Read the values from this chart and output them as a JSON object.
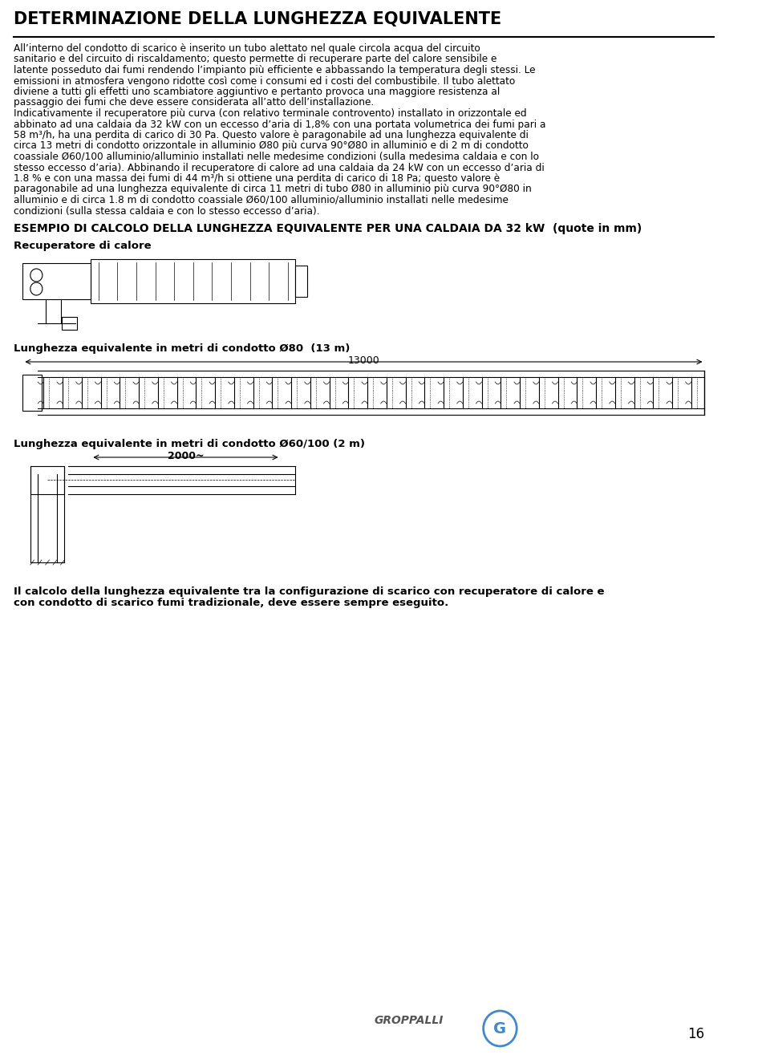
{
  "title": "DETERMINAZIONE DELLA LUNGHEZZA EQUIVALENTE",
  "paragraph1": "All’interno del condotto di scarico è inserito un tubo alettato nel quale circola acqua del circuito sanitario e del circuito di riscaldamento; questo permette di recuperare parte del calore sensibile e latente posseduto dai fumi rendendo l’impianto più efficiente e abbassando la temperatura degli stessi. Le emissioni in atmosfera vengono ridotte così come i consumi ed i costi del combustibile. Il tubo alettato diviene a tutti gli effetti uno scambiatore aggiuntivo e pertanto provoca una maggiore resistenza al passaggio dei fumi che deve essere considerata all’atto dell’installazione.",
  "paragraph2": "Indicativamente il recuperatore più curva (con relativo terminale controvento) installato in orizzontale ed abbinato ad una caldaia da 32 kW con un eccesso d’aria di 1,8% con una portata volumetrica dei fumi pari a 58 m³/h, ha una perdita di carico di 30 Pa. Questo valore è paragonabile ad una lunghezza equivalente di circa 13 metri di condotto orizzontale in alluminio Ø80 più curva 90°Ø80 in alluminio e di 2 m di condotto coassiale Ø60/100 alluminio/alluminio installati nelle medesime condizioni (sulla medesima caldaia e con lo stesso eccesso d’aria). Abbinando il recuperatore di calore ad una caldaia da 24 kW con un eccesso d’aria di 1.8 % e con una massa dei fumi di 44 m³/h si ottiene una perdita di carico di 18 Pa; questo valore è paragonabile ad una lunghezza equivalente di circa 11 metri di tubo Ø80 in alluminio più curva 90°Ø80 in alluminio e di circa 1.8 m di condotto coassiale Ø60/100 alluminio/alluminio installati nelle medesime condizioni (sulla stessa caldaia e con lo stesso eccesso d’aria).",
  "section_title": "ESEMPIO DI CALCOLO DELLA LUNGHEZZA EQUIVALENTE PER UNA CALDAIA DA 32 kW  (quote in mm)",
  "recuperatore_label": "Recuperatore di calore",
  "label1": "Lunghezza equivalente in metri di condotto Ø80  (13 m)",
  "label1_value": "13000",
  "label2": "Lunghezza equivalente in metri di condotto Ø60/100 (2 m)",
  "label2_value": "2000~",
  "footer_text": "Il calcolo della lunghezza equivalente tra la configurazione di scarico con recuperatore di calore e con condotto di scarico fumi tradizionale, deve essere sempre eseguito.",
  "page_number": "16",
  "brand": "GROPPALLI",
  "bg_color": "#ffffff",
  "text_color": "#000000"
}
